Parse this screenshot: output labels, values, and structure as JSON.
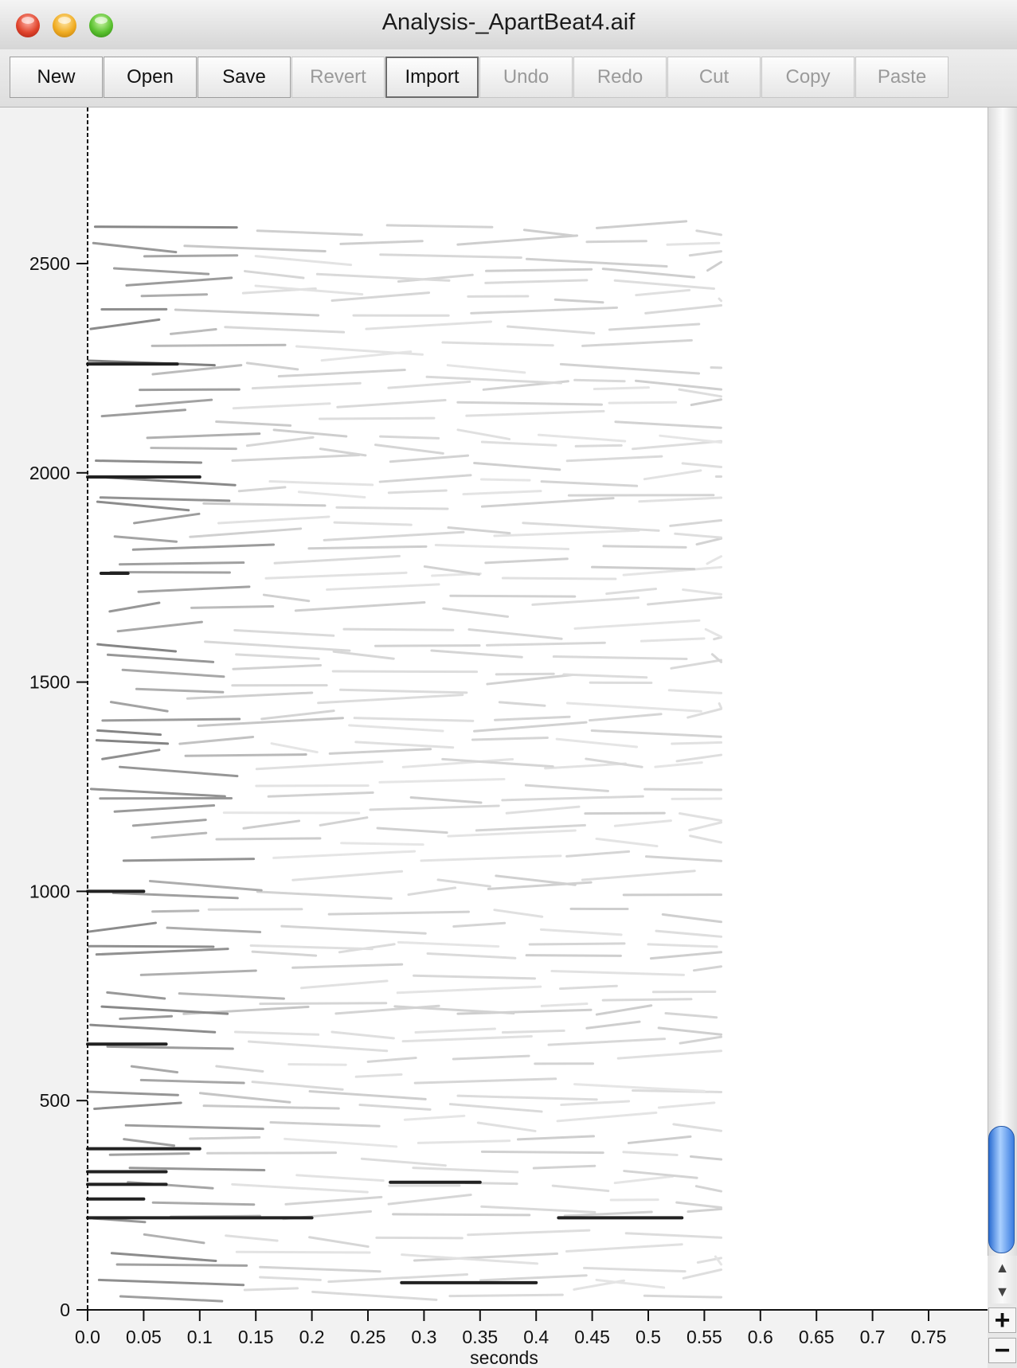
{
  "window": {
    "title": "Analysis-_ApartBeat4.aif"
  },
  "toolbar": {
    "buttons": [
      {
        "label": "New",
        "enabled": true,
        "pressed": false
      },
      {
        "label": "Open",
        "enabled": true,
        "pressed": false
      },
      {
        "label": "Save",
        "enabled": true,
        "pressed": false
      },
      {
        "label": "Revert",
        "enabled": false,
        "pressed": false
      },
      {
        "label": "Import",
        "enabled": true,
        "pressed": true
      },
      {
        "label": "Undo",
        "enabled": false,
        "pressed": false
      },
      {
        "label": "Redo",
        "enabled": false,
        "pressed": false
      },
      {
        "label": "Cut",
        "enabled": false,
        "pressed": false
      },
      {
        "label": "Copy",
        "enabled": false,
        "pressed": false
      },
      {
        "label": "Paste",
        "enabled": false,
        "pressed": false
      }
    ]
  },
  "plot": {
    "xlabel": "seconds",
    "xticks": [
      "0.0",
      "0.05",
      "0.1",
      "0.15",
      "0.2",
      "0.25",
      "0.3",
      "0.35",
      "0.4",
      "0.45",
      "0.5",
      "0.55",
      "0.6",
      "0.65",
      "0.7",
      "0.75"
    ],
    "yticks": [
      "0",
      "500",
      "1000",
      "1500",
      "2000",
      "2500"
    ],
    "xlim": [
      0,
      0.8
    ],
    "ylim": [
      0,
      2600
    ],
    "data_extent_seconds": 0.565
  },
  "scrollbar": {
    "up_icon": "arrow-up-icon",
    "down_icon": "arrow-down-icon",
    "zoom_in_label": "+",
    "zoom_out_label": "−",
    "accent": "#3b7de0"
  },
  "chart_data": {
    "type": "heatmap",
    "xlabel": "seconds",
    "ylabel": "",
    "xlim": [
      0,
      0.8
    ],
    "ylim": [
      0,
      2600
    ],
    "strong_partials": [
      {
        "y": 2260,
        "x0": 0.0,
        "x1": 0.08
      },
      {
        "y": 1990,
        "x0": 0.0,
        "x1": 0.1
      },
      {
        "y": 1760,
        "x0": 0.012,
        "x1": 0.036
      },
      {
        "y": 1000,
        "x0": 0.0,
        "x1": 0.05
      },
      {
        "y": 635,
        "x0": 0.0,
        "x1": 0.07
      },
      {
        "y": 385,
        "x0": 0.0,
        "x1": 0.1
      },
      {
        "y": 330,
        "x0": 0.0,
        "x1": 0.07
      },
      {
        "y": 300,
        "x0": 0.0,
        "x1": 0.07
      },
      {
        "y": 265,
        "x0": 0.0,
        "x1": 0.05
      },
      {
        "y": 220,
        "x0": 0.0,
        "x1": 0.2
      },
      {
        "y": 305,
        "x0": 0.27,
        "x1": 0.35
      },
      {
        "y": 220,
        "x0": 0.42,
        "x1": 0.53
      },
      {
        "y": 65,
        "x0": 0.28,
        "x1": 0.4
      }
    ]
  }
}
